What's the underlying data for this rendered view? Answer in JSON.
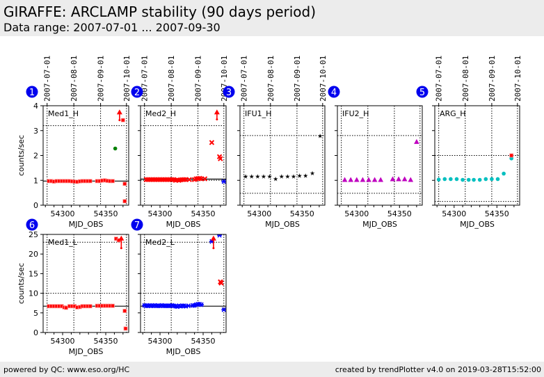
{
  "header": {
    "title": "GIRAFFE: ARCLAMP stability (90 days period)",
    "subtitle": "Data range: 2007-07-01 ... 2007-09-30"
  },
  "footer": {
    "left": "powered by QC: www.eso.org/HC",
    "right": "created by trendPlotter v4.0 on 2019-03-28T15:52:00"
  },
  "colors": {
    "badge": "#0000ee",
    "red": "#ff0000",
    "green": "#008000",
    "blue": "#0000ff",
    "magenta": "#bf00bf",
    "cyan": "#00bfbf",
    "black": "#000000"
  },
  "chart_data": [
    {
      "type": "scatter",
      "badge": "1",
      "title": "Med1_H",
      "xlabel": "MJD_OBS",
      "ylabel": "counts/sec",
      "xlim": [
        54277.4,
        54376.6
      ],
      "ylim": [
        0,
        4
      ],
      "xticks": [
        54300,
        54350
      ],
      "yticks": [
        0,
        1,
        2,
        3,
        4
      ],
      "date_ticks": [
        {
          "mjd": 54282,
          "label": "2007-07-01"
        },
        {
          "mjd": 54313,
          "label": "2007-08-01"
        },
        {
          "mjd": 54344,
          "label": "2007-09-01"
        },
        {
          "mjd": 54374,
          "label": "2007-10-01"
        }
      ],
      "ref_line": 0.97,
      "threshold_lines": [
        3.2
      ],
      "series": [
        {
          "name": "red-squares",
          "marker": "square",
          "color": "#ff0000",
          "x": [
            54284,
            54287,
            54290,
            54293,
            54296,
            54299,
            54302,
            54305,
            54308,
            54311,
            54314,
            54317,
            54320,
            54323,
            54326,
            54329,
            54332,
            54340,
            54343,
            54346,
            54349,
            54352,
            54355,
            54358,
            54370,
            54372,
            54372
          ],
          "y": [
            0.97,
            0.97,
            0.95,
            0.97,
            0.97,
            0.97,
            0.97,
            0.97,
            0.97,
            0.96,
            0.95,
            0.94,
            0.96,
            0.97,
            0.97,
            0.97,
            0.97,
            0.97,
            0.97,
            0.99,
            1.0,
            0.98,
            0.97,
            0.97,
            3.42,
            0.86,
            0.16
          ]
        },
        {
          "name": "green-dot",
          "marker": "circle",
          "color": "#008000",
          "x": [
            54361
          ],
          "y": [
            2.28
          ]
        }
      ],
      "arrows": [
        {
          "x": 54366,
          "from": 3.42,
          "to": 3.85
        }
      ]
    },
    {
      "type": "scatter",
      "badge": "2",
      "title": "Med2_H",
      "xlabel": "MJD_OBS",
      "ylabel": "",
      "xlim": [
        54277.4,
        54376.6
      ],
      "ylim": [
        0,
        4
      ],
      "xticks": [
        54300,
        54350
      ],
      "yticks": [
        0,
        1,
        2,
        3,
        4
      ],
      "date_ticks": [
        {
          "mjd": 54282,
          "label": "2007-07-01"
        },
        {
          "mjd": 54313,
          "label": "2007-08-01"
        },
        {
          "mjd": 54344,
          "label": "2007-09-01"
        },
        {
          "mjd": 54374,
          "label": "2007-10-01"
        }
      ],
      "ref_line": 1.05,
      "threshold_lines": [
        3.2,
        1.0
      ],
      "series": [
        {
          "name": "red-crosses",
          "marker": "x",
          "color": "#ff0000",
          "x": [
            54284,
            54286,
            54288,
            54290,
            54292,
            54294,
            54296,
            54298,
            54300,
            54302,
            54304,
            54306,
            54308,
            54310,
            54312,
            54314,
            54316,
            54318,
            54320,
            54322,
            54324,
            54326,
            54328,
            54330,
            54334,
            54340,
            54342,
            54344,
            54346,
            54348,
            54352,
            54360,
            54369,
            54370
          ],
          "y": [
            1.03,
            1.03,
            1.03,
            1.03,
            1.03,
            1.03,
            1.03,
            1.03,
            1.03,
            1.03,
            1.03,
            1.03,
            1.03,
            1.03,
            1.03,
            1.03,
            1.03,
            1.0,
            1.02,
            1.0,
            1.02,
            1.03,
            1.03,
            1.03,
            1.03,
            1.03,
            1.06,
            1.07,
            1.08,
            1.06,
            1.06,
            2.52,
            1.95,
            1.87
          ]
        },
        {
          "name": "blue-star",
          "marker": "asterisk",
          "color": "#0000ff",
          "x": [
            54374
          ],
          "y": [
            0.95
          ]
        }
      ],
      "arrows": [
        {
          "x": 54366,
          "from": 3.45,
          "to": 3.85
        }
      ]
    },
    {
      "type": "scatter",
      "badge": "3",
      "title": "IFU1_H",
      "xlabel": "MJD_OBS",
      "ylabel": "",
      "xlim": [
        54277.4,
        54376.6
      ],
      "ylim": [
        0,
        4
      ],
      "xticks": [
        54300,
        54350
      ],
      "yticks": [
        0,
        1,
        2,
        3,
        4
      ],
      "date_ticks": [
        {
          "mjd": 54282,
          "label": "2007-07-01"
        },
        {
          "mjd": 54313,
          "label": "2007-08-01"
        },
        {
          "mjd": 54344,
          "label": "2007-09-01"
        },
        {
          "mjd": 54374,
          "label": "2007-10-01"
        }
      ],
      "ref_line": null,
      "threshold_lines": [
        2.8,
        0.48
      ],
      "series": [
        {
          "name": "black-stars",
          "marker": "star",
          "color": "#000000",
          "x": [
            54284,
            54291,
            54298,
            54305,
            54312,
            54319,
            54326,
            54333,
            54340,
            54347,
            54354,
            54362,
            54371
          ],
          "y": [
            1.15,
            1.15,
            1.15,
            1.15,
            1.15,
            1.05,
            1.15,
            1.15,
            1.15,
            1.18,
            1.18,
            1.28,
            2.78
          ]
        }
      ],
      "arrows": []
    },
    {
      "type": "scatter",
      "badge": "4",
      "title": "IFU2_H",
      "xlabel": "MJD_OBS",
      "ylabel": "",
      "xlim": [
        54277.4,
        54376.6
      ],
      "ylim": [
        0,
        4
      ],
      "xticks": [
        54300,
        54350
      ],
      "yticks": [
        0,
        1,
        2,
        3,
        4
      ],
      "date_ticks": [],
      "date_vlines": [
        54282,
        54313,
        54344,
        54374
      ],
      "ref_line": null,
      "threshold_lines": [
        2.8,
        0.48
      ],
      "series": [
        {
          "name": "magenta-triangles",
          "marker": "triangle",
          "color": "#bf00bf",
          "x": [
            54286,
            54293,
            54300,
            54307,
            54314,
            54321,
            54328,
            54342,
            54349,
            54356,
            54363,
            54370
          ],
          "y": [
            1.02,
            1.02,
            1.02,
            1.02,
            1.02,
            1.02,
            1.02,
            1.05,
            1.05,
            1.05,
            1.02,
            2.55
          ]
        }
      ],
      "arrows": []
    },
    {
      "type": "scatter",
      "badge": "5",
      "title": "ARG_H",
      "xlabel": "MJD_OBS",
      "ylabel": "",
      "xlim": [
        54277.4,
        54376.6
      ],
      "ylim": [
        0,
        4
      ],
      "xticks": [
        54300,
        54350
      ],
      "yticks": [
        0,
        1,
        2,
        3,
        4
      ],
      "date_ticks": [
        {
          "mjd": 54282,
          "label": "2007-07-01"
        },
        {
          "mjd": 54313,
          "label": "2007-08-01"
        },
        {
          "mjd": 54344,
          "label": "2007-09-01"
        },
        {
          "mjd": 54374,
          "label": "2007-10-01"
        }
      ],
      "ref_line": null,
      "threshold_lines": [
        2.0,
        0.15
      ],
      "series": [
        {
          "name": "cyan-dots",
          "marker": "circle",
          "color": "#00bfbf",
          "x": [
            54282,
            54289,
            54296,
            54303,
            54310,
            54317,
            54323,
            54330,
            54337,
            54344,
            54351,
            54358,
            54367
          ],
          "y": [
            1.03,
            1.05,
            1.05,
            1.05,
            1.02,
            1.02,
            1.02,
            1.02,
            1.05,
            1.05,
            1.05,
            1.27,
            1.88
          ]
        },
        {
          "name": "red-square",
          "marker": "square",
          "color": "#ff0000",
          "x": [
            54367
          ],
          "y": [
            2.0
          ]
        }
      ],
      "arrows": []
    },
    {
      "type": "scatter",
      "badge": "6",
      "title": "Med1_L",
      "xlabel": "MJD_OBS",
      "ylabel": "counts/sec",
      "xlim": [
        54277.4,
        54376.6
      ],
      "ylim": [
        0,
        25
      ],
      "xticks": [
        54300,
        54350
      ],
      "yticks": [
        0,
        5,
        10,
        15,
        20,
        25
      ],
      "date_ticks": [],
      "date_vlines": [
        54282,
        54313,
        54344,
        54374
      ],
      "ref_line": 6.7,
      "threshold_lines": [
        23.0,
        10.0
      ],
      "series": [
        {
          "name": "red-squares",
          "marker": "square",
          "color": "#ff0000",
          "x": [
            54284,
            54287,
            54290,
            54293,
            54296,
            54299,
            54302,
            54304,
            54308,
            54311,
            54314,
            54317,
            54320,
            54323,
            54326,
            54329,
            54332,
            54340,
            54343,
            54346,
            54349,
            54352,
            54355,
            54358,
            54362,
            54365,
            54372,
            54373
          ],
          "y": [
            6.7,
            6.7,
            6.7,
            6.7,
            6.7,
            6.7,
            6.4,
            6.3,
            6.7,
            6.7,
            6.7,
            6.4,
            6.5,
            6.7,
            6.7,
            6.7,
            6.7,
            6.8,
            6.8,
            6.8,
            6.8,
            6.8,
            6.8,
            6.8,
            23.9,
            23.5,
            5.5,
            1.0
          ]
        }
      ],
      "arrows": [
        {
          "x": 54368,
          "from": 21.5,
          "to": 24.7
        }
      ]
    },
    {
      "type": "scatter",
      "badge": "7",
      "title": "Med2_L",
      "xlabel": "MJD_OBS",
      "ylabel": "",
      "xlim": [
        54277.4,
        54376.6
      ],
      "ylim": [
        0,
        25
      ],
      "xticks": [
        54300,
        54350
      ],
      "yticks": [
        0,
        5,
        10,
        15,
        20,
        25
      ],
      "date_ticks": [],
      "date_vlines": [
        54282,
        54313,
        54344,
        54374
      ],
      "ref_line": 6.7,
      "threshold_lines": [
        23.0,
        10.0
      ],
      "series": [
        {
          "name": "blue-stars",
          "marker": "asterisk",
          "color": "#0000ff",
          "x": [
            54282,
            54284,
            54286,
            54288,
            54290,
            54292,
            54294,
            54296,
            54298,
            54300,
            54302,
            54304,
            54306,
            54308,
            54310,
            54312,
            54314,
            54316,
            54318,
            54320,
            54322,
            54324,
            54326,
            54328,
            54330,
            54333,
            54338,
            54340,
            54342,
            54344,
            54346,
            54348,
            54360,
            54369,
            54374
          ],
          "y": [
            6.9,
            6.8,
            6.8,
            6.9,
            6.8,
            6.8,
            6.9,
            6.8,
            6.8,
            6.8,
            6.9,
            6.8,
            6.8,
            6.8,
            6.8,
            6.8,
            6.9,
            6.8,
            6.7,
            6.6,
            6.8,
            6.7,
            6.8,
            6.8,
            6.7,
            6.8,
            6.9,
            6.9,
            7.1,
            7.2,
            7.2,
            7.1,
            23.2,
            24.8,
            5.8
          ]
        },
        {
          "name": "red-crosses",
          "marker": "x",
          "color": "#ff0000",
          "x": [
            54370,
            54371
          ],
          "y": [
            12.9,
            12.6
          ]
        }
      ],
      "arrows": [
        {
          "x": 54362,
          "from": 21.5,
          "to": 24.7
        }
      ]
    }
  ]
}
